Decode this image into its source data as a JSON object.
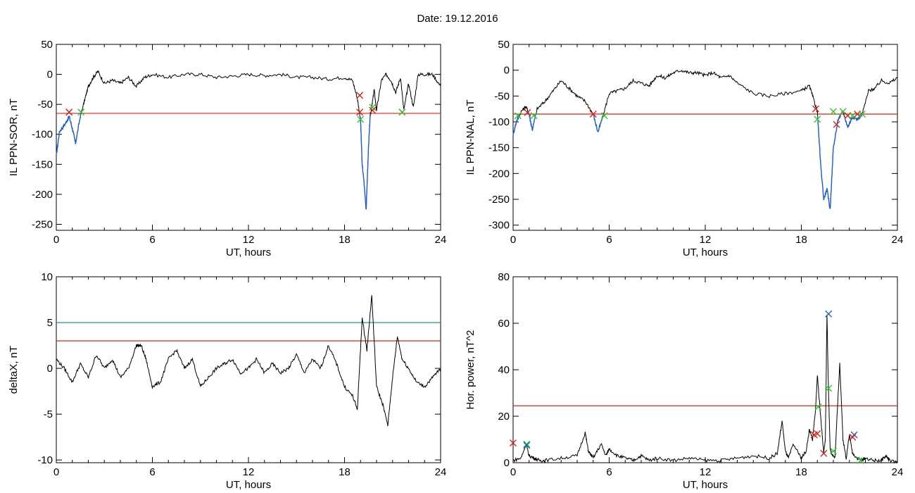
{
  "title": "Date:  19.12.2016",
  "colors": {
    "trace": "#000000",
    "highlight": "#1f5fd6",
    "threshold_red": "#e0201a",
    "threshold_teal": "#1a9a9a",
    "marker_red": "#e0201a",
    "marker_green": "#2ec72e",
    "marker_blue": "#2a5fc0"
  },
  "chart_data": [
    {
      "type": "line",
      "xlabel": "UT, hours",
      "ylabel": "IL PPN-SOR, nT",
      "xlim": [
        0,
        24
      ],
      "ylim": [
        -260,
        50
      ],
      "xticks": [
        0,
        6,
        12,
        18,
        24
      ],
      "yticks": [
        50,
        0,
        -50,
        -100,
        -150,
        -200,
        -250
      ],
      "threshold": {
        "value": -65,
        "color": "red"
      },
      "series": [
        {
          "x": [
            0,
            0.2,
            0.5,
            0.8,
            1.0,
            1.2,
            1.5,
            1.8,
            2.0,
            2.3,
            2.6,
            3.0,
            3.5,
            4.0,
            4.5,
            5.0,
            5.5,
            6.0,
            7.0,
            8.0,
            9.0,
            10.0,
            11.0,
            12.0,
            13.0,
            14.0,
            15.0,
            16.0,
            17.0,
            18.0,
            18.5,
            18.8,
            19.0,
            19.1,
            19.2,
            19.35,
            19.5,
            19.6,
            19.7,
            19.85,
            20.0,
            20.3,
            20.6,
            20.9,
            21.2,
            21.5,
            21.7,
            22.0,
            22.3,
            22.6,
            23.0,
            23.5,
            24.0
          ],
          "y": [
            -135,
            -95,
            -85,
            -70,
            -90,
            -115,
            -70,
            -40,
            -20,
            -5,
            5,
            -15,
            -10,
            -15,
            -5,
            -20,
            -5,
            0,
            -5,
            0,
            0,
            -5,
            -3,
            0,
            -2,
            0,
            -5,
            -5,
            -8,
            -5,
            -10,
            -40,
            -75,
            -150,
            -175,
            -225,
            -120,
            -70,
            -55,
            -25,
            -60,
            -10,
            0,
            -10,
            -30,
            -5,
            -60,
            -15,
            -55,
            0,
            0,
            0,
            -20
          ]
        }
      ],
      "markers": [
        {
          "x": 0.8,
          "y": -63,
          "color": "green"
        },
        {
          "x": 0.8,
          "y": -63,
          "color": "red"
        },
        {
          "x": 1.55,
          "y": -63,
          "color": "green"
        },
        {
          "x": 18.95,
          "y": -35,
          "color": "red"
        },
        {
          "x": 18.95,
          "y": -63,
          "color": "red"
        },
        {
          "x": 19.0,
          "y": -75,
          "color": "green"
        },
        {
          "x": 19.75,
          "y": -55,
          "color": "green"
        },
        {
          "x": 19.75,
          "y": -60,
          "color": "red"
        },
        {
          "x": 21.6,
          "y": -63,
          "color": "red"
        },
        {
          "x": 21.6,
          "y": -63,
          "color": "green"
        }
      ]
    },
    {
      "type": "line",
      "xlabel": "UT, hours",
      "ylabel": "IL PPN-NAL, nT",
      "xlim": [
        0,
        24
      ],
      "ylim": [
        -310,
        50
      ],
      "xticks": [
        0,
        6,
        12,
        18,
        24
      ],
      "yticks": [
        50,
        0,
        -50,
        -100,
        -150,
        -200,
        -250,
        -300
      ],
      "threshold": {
        "value": -85,
        "color": "red"
      },
      "series": [
        {
          "x": [
            0,
            0.2,
            0.5,
            0.8,
            1.0,
            1.2,
            1.5,
            2.0,
            2.5,
            3.0,
            3.5,
            4.0,
            4.5,
            5.0,
            5.3,
            5.6,
            6.0,
            6.5,
            7.0,
            7.5,
            8.0,
            8.5,
            9.0,
            9.5,
            10.0,
            10.5,
            11.0,
            11.5,
            12.0,
            12.5,
            13.0,
            13.5,
            14.0,
            15.0,
            16.0,
            17.0,
            18.0,
            18.5,
            18.8,
            19.0,
            19.2,
            19.4,
            19.6,
            19.8,
            20.0,
            20.3,
            20.6,
            20.9,
            21.2,
            21.5,
            21.8,
            22.2,
            22.6,
            23.0,
            23.5,
            24.0
          ],
          "y": [
            -125,
            -100,
            -80,
            -70,
            -85,
            -115,
            -75,
            -60,
            -40,
            -20,
            -35,
            -50,
            -60,
            -85,
            -120,
            -90,
            -45,
            -40,
            -35,
            -20,
            -25,
            -30,
            -10,
            -15,
            -5,
            0,
            -5,
            -5,
            -10,
            -5,
            -15,
            -10,
            -25,
            -45,
            -50,
            -45,
            -40,
            -30,
            -60,
            -80,
            -180,
            -250,
            -230,
            -270,
            -150,
            -95,
            -80,
            -110,
            -90,
            -95,
            -85,
            -40,
            -35,
            -20,
            -25,
            -15
          ]
        }
      ],
      "markers": [
        {
          "x": 0.3,
          "y": -88,
          "color": "green"
        },
        {
          "x": 0.9,
          "y": -82,
          "color": "red"
        },
        {
          "x": 1.3,
          "y": -88,
          "color": "green"
        },
        {
          "x": 5.0,
          "y": -85,
          "color": "red"
        },
        {
          "x": 5.7,
          "y": -88,
          "color": "green"
        },
        {
          "x": 18.9,
          "y": -75,
          "color": "red"
        },
        {
          "x": 19.0,
          "y": -95,
          "color": "green"
        },
        {
          "x": 20.0,
          "y": -80,
          "color": "green"
        },
        {
          "x": 20.2,
          "y": -105,
          "color": "red"
        },
        {
          "x": 20.6,
          "y": -80,
          "color": "green"
        },
        {
          "x": 20.9,
          "y": -88,
          "color": "red"
        },
        {
          "x": 21.2,
          "y": -88,
          "color": "green"
        },
        {
          "x": 21.5,
          "y": -85,
          "color": "red"
        },
        {
          "x": 21.8,
          "y": -85,
          "color": "green"
        }
      ]
    },
    {
      "type": "line",
      "xlabel": "UT, hours",
      "ylabel": "deltaX, nT",
      "xlim": [
        0,
        24
      ],
      "ylim": [
        -10.3,
        10
      ],
      "xticks": [
        0,
        6,
        12,
        18,
        24
      ],
      "yticks": [
        10,
        5,
        0,
        -5,
        -10
      ],
      "thresholds": [
        {
          "value": 5,
          "color": "teal"
        },
        {
          "value": 3,
          "color": "red"
        }
      ],
      "series": [
        {
          "x": [
            0,
            0.5,
            1.0,
            1.5,
            2.0,
            2.5,
            3.0,
            3.5,
            4.0,
            4.5,
            5.0,
            5.3,
            5.6,
            6.0,
            6.5,
            7.0,
            7.5,
            8.0,
            8.5,
            9.0,
            9.5,
            10.0,
            10.5,
            11.0,
            11.5,
            12.0,
            12.5,
            13.0,
            13.5,
            14.0,
            14.5,
            15.0,
            15.5,
            16.0,
            16.5,
            17.0,
            17.5,
            18.0,
            18.5,
            18.8,
            19.1,
            19.4,
            19.7,
            20.0,
            20.4,
            20.7,
            21.0,
            21.3,
            21.6,
            22.0,
            22.5,
            23.0,
            23.5,
            24.0
          ],
          "y": [
            1,
            0,
            -1.5,
            0.5,
            -1,
            1.5,
            0,
            1,
            -1,
            0,
            2.5,
            2.5,
            1,
            -2,
            -1.5,
            1,
            2,
            0,
            1,
            -2,
            -1,
            0,
            0.5,
            1,
            -0.5,
            0,
            1,
            -0.5,
            0.5,
            -0.5,
            0,
            1.5,
            -0.5,
            1,
            0,
            2.5,
            0.5,
            -2,
            -3,
            -4.5,
            5.5,
            2,
            8,
            -2,
            -4,
            -6.2,
            -1,
            3.5,
            1,
            0,
            -1.5,
            -2,
            -1,
            0
          ]
        }
      ]
    },
    {
      "type": "line",
      "xlabel": "UT, hours",
      "ylabel": "Hor. power, nT^2",
      "xlim": [
        0,
        24
      ],
      "ylim": [
        0,
        80
      ],
      "xticks": [
        0,
        6,
        12,
        18,
        24
      ],
      "yticks": [
        80,
        60,
        40,
        20,
        0
      ],
      "threshold": {
        "value": 24.5,
        "color": "red"
      },
      "series": [
        {
          "x": [
            0,
            0.5,
            0.8,
            1.0,
            1.3,
            1.6,
            2.0,
            3.0,
            4.0,
            4.5,
            4.7,
            5.0,
            5.5,
            5.8,
            6.0,
            6.5,
            7.0,
            7.5,
            8.0,
            8.5,
            9.0,
            10.0,
            11.0,
            12.0,
            13.0,
            14.0,
            15.0,
            16.0,
            16.5,
            16.8,
            17.0,
            17.2,
            17.5,
            18.0,
            18.3,
            18.5,
            18.7,
            18.9,
            19.0,
            19.2,
            19.4,
            19.5,
            19.6,
            19.7,
            19.8,
            19.9,
            20.1,
            20.4,
            20.6,
            20.8,
            21.0,
            21.2,
            21.5,
            21.8,
            22.0,
            22.5,
            23.0,
            23.3,
            23.5,
            24.0
          ],
          "y": [
            1,
            2,
            8,
            3,
            2,
            1,
            1,
            2,
            3,
            13,
            5,
            2,
            8,
            3,
            6,
            3,
            2,
            1,
            3,
            1,
            2,
            1,
            2,
            1,
            1,
            2,
            3,
            2,
            4,
            18,
            5,
            2,
            8,
            2,
            5,
            14,
            10,
            24,
            38,
            20,
            4,
            10,
            64,
            30,
            6,
            4,
            2,
            43,
            10,
            2,
            12,
            4,
            2,
            1,
            2,
            1,
            1,
            3,
            1,
            0
          ]
        }
      ],
      "markers": [
        {
          "x": 0.0,
          "y": 8.5,
          "color": "red"
        },
        {
          "x": 0.85,
          "y": 8,
          "color": "green"
        },
        {
          "x": 0.85,
          "y": 7.5,
          "color": "blue"
        },
        {
          "x": 18.8,
          "y": 12,
          "color": "red"
        },
        {
          "x": 19.0,
          "y": 12.5,
          "color": "red"
        },
        {
          "x": 19.05,
          "y": 24,
          "color": "green"
        },
        {
          "x": 19.4,
          "y": 4,
          "color": "red"
        },
        {
          "x": 19.7,
          "y": 64,
          "color": "blue"
        },
        {
          "x": 19.7,
          "y": 32,
          "color": "green"
        },
        {
          "x": 20.0,
          "y": 5,
          "color": "green"
        },
        {
          "x": 21.3,
          "y": 12,
          "color": "blue"
        },
        {
          "x": 21.2,
          "y": 11,
          "color": "red"
        },
        {
          "x": 21.7,
          "y": 1,
          "color": "green"
        }
      ]
    }
  ]
}
